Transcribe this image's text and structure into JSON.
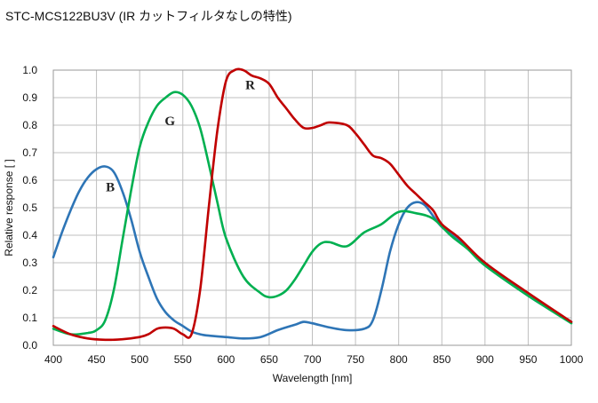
{
  "page": {
    "title": "STC-MCS122BU3V (IR カットフィルタなしの特性)"
  },
  "chart_data": {
    "type": "line",
    "title": "STC-MCS122BU3V (IR カットフィルタなしの特性)",
    "xlabel": "Wavelength [nm]",
    "ylabel": "Relative response [ ]",
    "xlim": [
      400,
      1000
    ],
    "ylim": [
      0,
      1.0
    ],
    "xticks": [
      400,
      450,
      500,
      550,
      600,
      650,
      700,
      750,
      800,
      850,
      900,
      950,
      1000
    ],
    "yticks": [
      0.0,
      0.1,
      0.2,
      0.3,
      0.4,
      0.5,
      0.6,
      0.7,
      0.8,
      0.9,
      1.0
    ],
    "ytick_labels": [
      "0.0",
      "0.1",
      "0.2",
      "0.3",
      "0.4",
      "0.5",
      "0.6",
      "0.7",
      "0.8",
      "0.9",
      "1.0"
    ],
    "grid": true,
    "legend": "none",
    "series": [
      {
        "name": "B",
        "color": "#2e75b6",
        "label_at": [
          466,
          0.56
        ],
        "x": [
          400,
          410,
          420,
          430,
          440,
          450,
          460,
          470,
          480,
          490,
          500,
          510,
          520,
          530,
          540,
          550,
          560,
          570,
          580,
          600,
          620,
          640,
          660,
          680,
          690,
          700,
          720,
          740,
          760,
          770,
          780,
          790,
          800,
          810,
          820,
          830,
          840,
          850,
          870,
          900,
          950,
          1000
        ],
        "y": [
          0.32,
          0.41,
          0.49,
          0.56,
          0.61,
          0.64,
          0.65,
          0.63,
          0.56,
          0.46,
          0.34,
          0.25,
          0.17,
          0.12,
          0.09,
          0.07,
          0.05,
          0.04,
          0.035,
          0.03,
          0.025,
          0.03,
          0.055,
          0.075,
          0.085,
          0.08,
          0.065,
          0.055,
          0.06,
          0.09,
          0.2,
          0.34,
          0.44,
          0.5,
          0.52,
          0.51,
          0.47,
          0.43,
          0.38,
          0.3,
          0.18,
          0.085
        ]
      },
      {
        "name": "G",
        "color": "#00b050",
        "label_at": [
          535,
          0.8
        ],
        "x": [
          400,
          420,
          440,
          450,
          460,
          470,
          480,
          490,
          500,
          510,
          520,
          530,
          540,
          550,
          560,
          570,
          580,
          590,
          600,
          620,
          640,
          650,
          660,
          670,
          680,
          690,
          700,
          710,
          720,
          740,
          760,
          780,
          800,
          820,
          840,
          860,
          880,
          900,
          950,
          1000
        ],
        "y": [
          0.06,
          0.04,
          0.045,
          0.055,
          0.09,
          0.2,
          0.38,
          0.56,
          0.72,
          0.81,
          0.87,
          0.9,
          0.92,
          0.91,
          0.87,
          0.79,
          0.66,
          0.52,
          0.39,
          0.25,
          0.19,
          0.175,
          0.18,
          0.2,
          0.24,
          0.29,
          0.34,
          0.37,
          0.375,
          0.36,
          0.41,
          0.44,
          0.485,
          0.48,
          0.46,
          0.4,
          0.35,
          0.29,
          0.18,
          0.08
        ]
      },
      {
        "name": "R",
        "color": "#c00000",
        "label_at": [
          628,
          0.93
        ],
        "x": [
          400,
          420,
          440,
          460,
          480,
          500,
          510,
          520,
          530,
          540,
          550,
          560,
          570,
          580,
          590,
          600,
          610,
          620,
          630,
          640,
          650,
          660,
          670,
          680,
          690,
          700,
          710,
          720,
          740,
          750,
          760,
          770,
          780,
          790,
          800,
          810,
          820,
          830,
          840,
          850,
          870,
          900,
          950,
          1000
        ],
        "y": [
          0.07,
          0.04,
          0.025,
          0.02,
          0.022,
          0.03,
          0.04,
          0.06,
          0.065,
          0.06,
          0.04,
          0.04,
          0.2,
          0.5,
          0.78,
          0.96,
          1.0,
          1.0,
          0.98,
          0.97,
          0.95,
          0.9,
          0.86,
          0.82,
          0.79,
          0.79,
          0.8,
          0.81,
          0.8,
          0.77,
          0.73,
          0.69,
          0.68,
          0.66,
          0.62,
          0.58,
          0.55,
          0.52,
          0.49,
          0.44,
          0.39,
          0.3,
          0.19,
          0.085
        ]
      }
    ]
  }
}
